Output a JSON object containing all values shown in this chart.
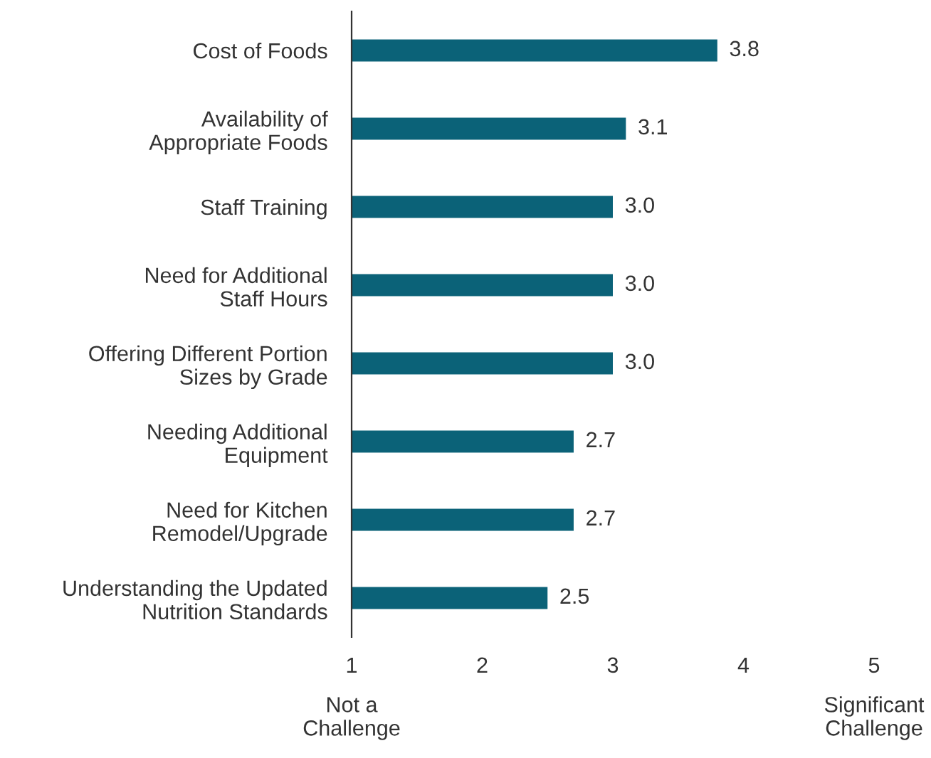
{
  "chart_data": {
    "type": "bar",
    "orientation": "horizontal",
    "categories": [
      "Cost of Foods",
      "Availability of\nAppropriate Foods",
      "Staff Training",
      "Need for Additional\nStaff Hours",
      "Offering Different Portion\nSizes by Grade",
      "Needing Additional\nEquipment",
      "Need for Kitchen\nRemodel/Upgrade",
      "Understanding the Updated\nNutrition Standards"
    ],
    "values": [
      3.8,
      3.1,
      3.0,
      3.0,
      3.0,
      2.7,
      2.7,
      2.5
    ],
    "value_labels": [
      "3.8",
      "3.1",
      "3.0",
      "3.0",
      "3.0",
      "2.7",
      "2.7",
      "2.5"
    ],
    "color": "#0b6278",
    "xlim": [
      1,
      5
    ],
    "xticks": [
      1,
      2,
      3,
      4,
      5
    ],
    "annotations": [
      "Not a\nChallenge",
      "Significant\nChallenge"
    ]
  }
}
